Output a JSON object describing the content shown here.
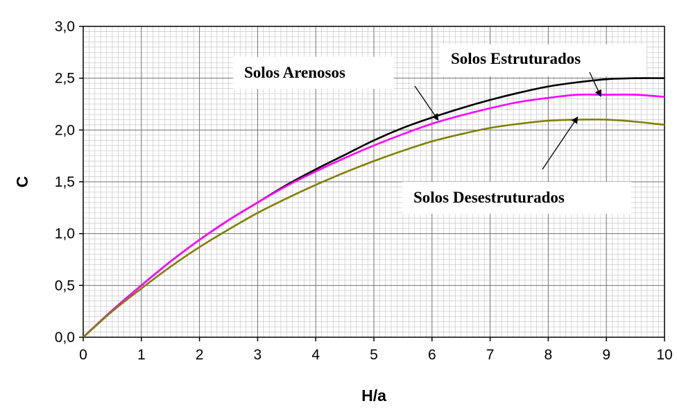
{
  "chart_data": {
    "type": "line",
    "xlabel": "H/a",
    "ylabel": "C",
    "xlim": [
      0,
      10
    ],
    "ylim": [
      0,
      3.0
    ],
    "xticks": [
      0,
      1,
      2,
      3,
      4,
      5,
      6,
      7,
      8,
      9,
      10
    ],
    "xtick_labels": [
      "0",
      "1",
      "2",
      "3",
      "4",
      "5",
      "6",
      "7",
      "8",
      "9",
      "10"
    ],
    "yticks": [
      0,
      0.5,
      1.0,
      1.5,
      2.0,
      2.5,
      3.0
    ],
    "ytick_labels": [
      "0,0",
      "0,5",
      "1,0",
      "1,5",
      "2,0",
      "2,5",
      "3,0"
    ],
    "grid": true,
    "legend": "none",
    "series": [
      {
        "color": "#000000",
        "x": [
          0,
          0.5,
          1,
          1.5,
          2,
          2.5,
          3,
          3.5,
          4,
          4.5,
          5,
          5.5,
          6,
          6.5,
          7,
          7.5,
          8,
          8.5,
          9,
          9.5,
          10
        ],
        "y": [
          0,
          0.26,
          0.5,
          0.73,
          0.94,
          1.13,
          1.3,
          1.47,
          1.62,
          1.76,
          1.9,
          2.02,
          2.12,
          2.21,
          2.29,
          2.36,
          2.42,
          2.46,
          2.49,
          2.5,
          2.5
        ]
      },
      {
        "color": "#ff00ff",
        "x": [
          0,
          0.5,
          1,
          1.5,
          2,
          2.5,
          3,
          3.5,
          4,
          4.5,
          5,
          5.5,
          6,
          6.5,
          7,
          7.5,
          8,
          8.5,
          9,
          9.5,
          10
        ],
        "y": [
          0,
          0.26,
          0.5,
          0.73,
          0.94,
          1.13,
          1.3,
          1.46,
          1.6,
          1.73,
          1.85,
          1.96,
          2.06,
          2.14,
          2.21,
          2.27,
          2.31,
          2.34,
          2.34,
          2.34,
          2.32
        ]
      },
      {
        "color": "#808000",
        "x": [
          0,
          0.5,
          1,
          1.5,
          2,
          2.5,
          3,
          3.5,
          4,
          4.5,
          5,
          5.5,
          6,
          6.5,
          7,
          7.5,
          8,
          8.5,
          9,
          9.5,
          10
        ],
        "y": [
          0,
          0.25,
          0.47,
          0.68,
          0.87,
          1.04,
          1.2,
          1.34,
          1.47,
          1.59,
          1.7,
          1.8,
          1.89,
          1.96,
          2.02,
          2.06,
          2.09,
          2.1,
          2.1,
          2.08,
          2.05
        ]
      }
    ],
    "annotations": [
      {
        "text": "Solos Arenosos",
        "arrow_to": [
          6.1,
          2.1
        ]
      },
      {
        "text": "Solos Estruturados",
        "arrow_to": [
          8.9,
          2.33
        ]
      },
      {
        "text": "Solos Desestruturados",
        "arrow_to": [
          8.5,
          2.12
        ]
      }
    ]
  }
}
